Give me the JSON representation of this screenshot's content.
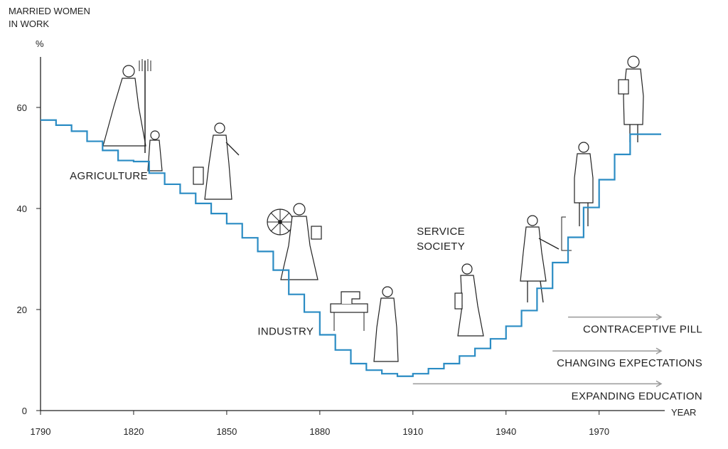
{
  "chart_data": {
    "type": "line",
    "style": "step",
    "ylabel_lines": [
      "MARRIED WOMEN",
      "IN WORK"
    ],
    "y_unit": "%",
    "xlabel": "YEAR",
    "xlim": [
      1790,
      1990
    ],
    "ylim": [
      0,
      70
    ],
    "x_ticks": [
      1790,
      1820,
      1850,
      1880,
      1910,
      1940,
      1970
    ],
    "y_ticks": [
      0,
      20,
      40,
      60
    ],
    "grid": false,
    "line_color": "#2b8cc4",
    "series": [
      {
        "x": [
          1790,
          1795,
          1800,
          1805,
          1810,
          1815,
          1820,
          1825,
          1830,
          1835,
          1840,
          1845,
          1850,
          1855,
          1860,
          1865,
          1870,
          1875,
          1880,
          1885,
          1890,
          1895,
          1900,
          1905,
          1910,
          1915,
          1920,
          1925,
          1930,
          1935,
          1940,
          1945,
          1950,
          1955,
          1960,
          1965,
          1970,
          1975,
          1980,
          1985,
          1990
        ],
        "y": [
          57.5,
          56.5,
          55.3,
          53.3,
          51.5,
          49.5,
          49.3,
          47.0,
          44.8,
          43.0,
          41.0,
          39.0,
          37.0,
          34.2,
          31.5,
          27.8,
          23.0,
          19.5,
          15.0,
          12.0,
          9.3,
          8.0,
          7.3,
          6.8,
          7.3,
          8.3,
          9.3,
          10.8,
          12.3,
          14.2,
          16.7,
          19.8,
          24.2,
          29.3,
          34.3,
          40.2,
          45.7,
          50.7,
          54.7,
          54.7,
          54.7
        ]
      }
    ],
    "annotations": [
      {
        "text": "AGRICULTURE",
        "x": 1812,
        "y": 45.8
      },
      {
        "text": "INDUSTRY",
        "x": 1869,
        "y": 15.0
      },
      {
        "text": "SERVICE",
        "x": 1919,
        "y": 34.8
      },
      {
        "text": "SOCIETY",
        "x": 1919,
        "y": 31.8
      }
    ],
    "arrows": [
      {
        "text": "CONTRACEPTIVE PILL",
        "x_start": 1960,
        "x_end": 1990,
        "y": 18.5
      },
      {
        "text": "CHANGING EXPECTATIONS",
        "x_start": 1955,
        "x_end": 1990,
        "y": 11.8
      },
      {
        "text": "EXPANDING EDUCATION",
        "x_start": 1910,
        "x_end": 1990,
        "y": 5.3
      }
    ],
    "arrow_color": "#999999"
  }
}
